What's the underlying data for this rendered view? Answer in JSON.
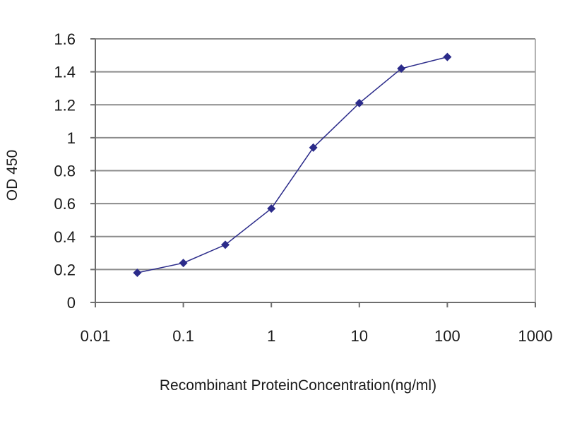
{
  "chart_data": {
    "type": "line",
    "title": "",
    "xlabel": "Recombinant ProteinConcentration(ng/ml)",
    "ylabel": "OD 450",
    "x_scale": "log",
    "xlim": [
      0.01,
      1000
    ],
    "ylim": [
      0,
      1.6
    ],
    "x_ticks": [
      "0.01",
      "0.1",
      "1",
      "10",
      "100",
      "1000"
    ],
    "y_ticks": [
      "0",
      "0.2",
      "0.4",
      "0.6",
      "0.8",
      "1",
      "1.2",
      "1.4",
      "1.6"
    ],
    "grid": "horizontal",
    "legend": "none",
    "series": [
      {
        "x": [
          0.03,
          0.1,
          0.3,
          1,
          3,
          10,
          30,
          100
        ],
        "values": [
          0.18,
          0.24,
          0.35,
          0.57,
          0.94,
          1.21,
          1.42,
          1.49
        ],
        "color": "#2b2b8a"
      }
    ],
    "plot_bg": "#ffffff",
    "grid_color": "#8c8c8c"
  }
}
